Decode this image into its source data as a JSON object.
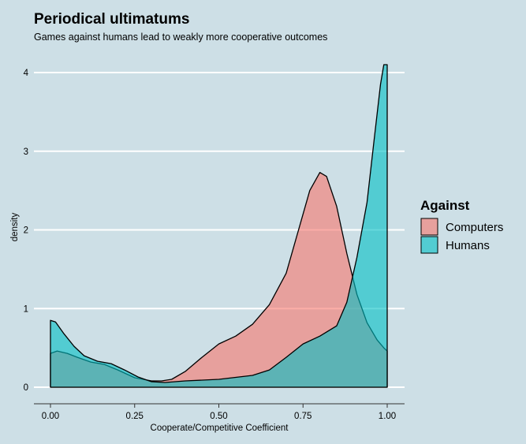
{
  "chart_data": {
    "type": "area",
    "title": "Periodical ultimatums",
    "subtitle": "Games against humans lead to weakly more cooperative outcomes",
    "xlabel": "Cooperate/Competitive Coefficient",
    "ylabel": "density",
    "xlim": [
      -0.05,
      1.05
    ],
    "ylim": [
      -0.2,
      4.2
    ],
    "x_ticks": [
      0,
      0.25,
      0.5,
      0.75,
      1
    ],
    "x_tick_labels": [
      "0.00",
      "0.25",
      "0.50",
      "0.75",
      "1.00"
    ],
    "y_ticks": [
      0,
      1,
      2,
      3,
      4
    ],
    "y_tick_labels": [
      "0",
      "1",
      "2",
      "3",
      "4"
    ],
    "grid": "horizontal-major",
    "legend": {
      "title": "Against",
      "position": "right"
    },
    "series": [
      {
        "name": "Computers",
        "color": "#F8766D",
        "points": [
          [
            0,
            0.43
          ],
          [
            0.02,
            0.46
          ],
          [
            0.05,
            0.43
          ],
          [
            0.08,
            0.38
          ],
          [
            0.12,
            0.32
          ],
          [
            0.16,
            0.29
          ],
          [
            0.2,
            0.22
          ],
          [
            0.25,
            0.12
          ],
          [
            0.3,
            0.08
          ],
          [
            0.33,
            0.08
          ],
          [
            0.36,
            0.1
          ],
          [
            0.4,
            0.2
          ],
          [
            0.45,
            0.38
          ],
          [
            0.5,
            0.55
          ],
          [
            0.55,
            0.65
          ],
          [
            0.6,
            0.8
          ],
          [
            0.65,
            1.05
          ],
          [
            0.7,
            1.45
          ],
          [
            0.74,
            2.05
          ],
          [
            0.77,
            2.5
          ],
          [
            0.8,
            2.73
          ],
          [
            0.82,
            2.68
          ],
          [
            0.85,
            2.3
          ],
          [
            0.88,
            1.7
          ],
          [
            0.91,
            1.18
          ],
          [
            0.94,
            0.82
          ],
          [
            0.97,
            0.6
          ],
          [
            0.99,
            0.5
          ],
          [
            1.0,
            0.46
          ]
        ]
      },
      {
        "name": "Humans",
        "color": "#00BFC4",
        "points": [
          [
            0,
            0.85
          ],
          [
            0.015,
            0.83
          ],
          [
            0.04,
            0.68
          ],
          [
            0.07,
            0.52
          ],
          [
            0.1,
            0.4
          ],
          [
            0.14,
            0.33
          ],
          [
            0.18,
            0.3
          ],
          [
            0.22,
            0.22
          ],
          [
            0.26,
            0.13
          ],
          [
            0.3,
            0.07
          ],
          [
            0.34,
            0.06
          ],
          [
            0.4,
            0.08
          ],
          [
            0.5,
            0.1
          ],
          [
            0.6,
            0.15
          ],
          [
            0.65,
            0.22
          ],
          [
            0.7,
            0.38
          ],
          [
            0.75,
            0.55
          ],
          [
            0.8,
            0.65
          ],
          [
            0.85,
            0.78
          ],
          [
            0.88,
            1.08
          ],
          [
            0.91,
            1.65
          ],
          [
            0.94,
            2.35
          ],
          [
            0.96,
            3.1
          ],
          [
            0.98,
            3.85
          ],
          [
            0.99,
            4.1
          ],
          [
            1.0,
            4.1
          ]
        ]
      }
    ]
  }
}
